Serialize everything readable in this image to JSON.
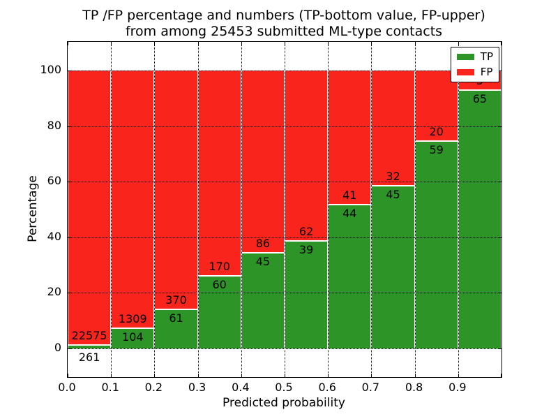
{
  "title": {
    "line1": "TP /FP percentage and numbers (TP-bottom value, FP-upper)",
    "line2": "from among 25453 submitted ML-type contacts"
  },
  "axes": {
    "xlabel": "Predicted probability",
    "ylabel": "Percentage",
    "x_tick_labels": [
      "0.0",
      "0.1",
      "0.2",
      "0.3",
      "0.4",
      "0.5",
      "0.6",
      "0.7",
      "0.8",
      "0.9"
    ],
    "y_tick_labels": [
      "0",
      "20",
      "40",
      "60",
      "80",
      "100"
    ],
    "y_tick_values": [
      0,
      20,
      40,
      60,
      80,
      100
    ],
    "xlim": [
      0.0,
      1.0
    ],
    "ylim": [
      -10.5,
      110.5
    ],
    "grid_style": "dotted"
  },
  "legend": {
    "position": "upper right",
    "entries": [
      {
        "label": "TP",
        "color": "#2d9428"
      },
      {
        "label": "FP",
        "color": "#f9241b"
      }
    ]
  },
  "chart_data": {
    "type": "bar",
    "stacked": true,
    "normalized": "each 0.1-wide probability bin scaled to 100%",
    "title": "TP /FP percentage and numbers (TP-bottom value, FP-upper) from among 25453 submitted ML-type contacts",
    "xlabel": "Predicted probability",
    "ylabel": "Percentage",
    "total_contacts": 25453,
    "bin_edges": [
      0.0,
      0.1,
      0.2,
      0.3,
      0.4,
      0.5,
      0.6,
      0.7,
      0.8,
      0.9,
      1.0
    ],
    "series": [
      {
        "name": "TP",
        "color": "#2d9428",
        "counts": [
          261,
          104,
          61,
          60,
          45,
          39,
          44,
          45,
          59,
          65
        ]
      },
      {
        "name": "FP",
        "color": "#f9241b",
        "counts": [
          22575,
          1309,
          370,
          170,
          86,
          62,
          41,
          32,
          20,
          5
        ]
      }
    ],
    "tp_percent_per_bin": [
      1.14,
      7.36,
      14.15,
      26.09,
      34.35,
      38.61,
      51.76,
      58.44,
      74.68,
      92.86
    ],
    "legend_position": "upper right",
    "grid": true
  }
}
